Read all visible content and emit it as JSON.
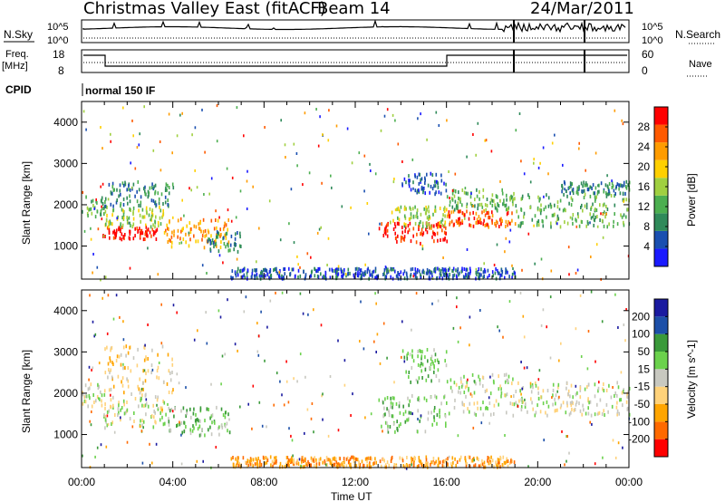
{
  "header": {
    "station": "Christmas Valley East (fitACF)",
    "beam": "Beam 14",
    "date": "24/Mar/2011"
  },
  "params": {
    "nsky_label": "N.Sky",
    "nsearch_label": "N.Search",
    "nsky_ticks": [
      "10^5",
      "10^0"
    ],
    "nsearch_ticks": [
      "10^5",
      "10^0"
    ],
    "freq_label_1": "Freq.",
    "freq_label_2": "[MHz]",
    "freq_ticks": [
      "18",
      "8"
    ],
    "nave_label": "Nave",
    "nave_ticks": [
      "60",
      "0"
    ],
    "cpid_label": "CPID",
    "cpid_text": "normal 150 IF"
  },
  "axes": {
    "ylabel": "Slant Range [km]",
    "yticks": [
      "1000",
      "2000",
      "3000",
      "4000"
    ],
    "xlabel": "Time UT",
    "xticks": [
      "00:00",
      "04:00",
      "08:00",
      "12:00",
      "16:00",
      "20:00",
      "00:00"
    ]
  },
  "colors": {
    "power": [
      "#1a1aff",
      "#1a4fb0",
      "#2f8a5a",
      "#4caf50",
      "#a0d040",
      "#ffd000",
      "#ff9c00",
      "#ff5a00",
      "#ff0000"
    ],
    "velocity": [
      "#ff0000",
      "#ff6a00",
      "#ffa500",
      "#ffd27a",
      "#c8c8c0",
      "#6bd24c",
      "#3a9a3a",
      "#1c4fa8",
      "#1a1aa0"
    ]
  },
  "chart_data": [
    {
      "type": "heatmap",
      "title": "Power",
      "x_unit": "hours UT",
      "xlim": [
        0,
        24
      ],
      "ylim": [
        200,
        4500
      ],
      "colorbar_label": "Power [dB]",
      "colorbar_ticks": [
        "4",
        "8",
        "12",
        "16",
        "20",
        "24",
        "28"
      ],
      "regions": [
        {
          "t0": 0.0,
          "t1": 1.0,
          "r0": 1700,
          "r1": 2300,
          "level": 3
        },
        {
          "t0": 0.9,
          "t1": 3.3,
          "r0": 1200,
          "r1": 1500,
          "level": 8
        },
        {
          "t0": 1.0,
          "t1": 3.6,
          "r0": 1500,
          "r1": 2000,
          "level": 4
        },
        {
          "t0": 1.0,
          "t1": 4.0,
          "r0": 2000,
          "r1": 2600,
          "level": 2
        },
        {
          "t0": 3.6,
          "t1": 6.5,
          "r0": 1000,
          "r1": 1700,
          "level": 6
        },
        {
          "t0": 5.5,
          "t1": 7.0,
          "r0": 900,
          "r1": 1400,
          "level": 2
        },
        {
          "t0": 6.5,
          "t1": 19.0,
          "r0": 250,
          "r1": 500,
          "level": 1
        },
        {
          "t0": 13.0,
          "t1": 16.0,
          "r0": 1100,
          "r1": 1600,
          "level": 8
        },
        {
          "t0": 13.5,
          "t1": 16.0,
          "r0": 1500,
          "r1": 2000,
          "level": 4
        },
        {
          "t0": 14.0,
          "t1": 16.0,
          "r0": 2300,
          "r1": 2800,
          "level": 1
        },
        {
          "t0": 16.0,
          "t1": 19.0,
          "r0": 1500,
          "r1": 1900,
          "level": 7
        },
        {
          "t0": 16.0,
          "t1": 19.0,
          "r0": 1900,
          "r1": 2400,
          "level": 3
        },
        {
          "t0": 19.0,
          "t1": 24.0,
          "r0": 1500,
          "r1": 2300,
          "level": 3
        },
        {
          "t0": 21.0,
          "t1": 24.0,
          "r0": 2300,
          "r1": 2600,
          "level": 2
        }
      ]
    },
    {
      "type": "heatmap",
      "title": "Velocity",
      "x_unit": "hours UT",
      "xlim": [
        0,
        24
      ],
      "ylim": [
        200,
        4500
      ],
      "colorbar_label": "Velocity [m s^-1]",
      "colorbar_ticks": [
        "-200",
        "-100",
        "-50",
        "-15",
        "15",
        "50",
        "100",
        "200"
      ],
      "regions": [
        {
          "t0": 0.0,
          "t1": 1.0,
          "r0": 1700,
          "r1": 2300,
          "level": 4
        },
        {
          "t0": 0.9,
          "t1": 3.6,
          "r0": 1200,
          "r1": 2000,
          "level": 4
        },
        {
          "t0": 1.0,
          "t1": 4.0,
          "r0": 2000,
          "r1": 3200,
          "level": 3
        },
        {
          "t0": 3.6,
          "t1": 6.5,
          "r0": 1000,
          "r1": 1700,
          "level": 5
        },
        {
          "t0": 6.5,
          "t1": 19.0,
          "r0": 250,
          "r1": 500,
          "level": 2
        },
        {
          "t0": 13.0,
          "t1": 16.0,
          "r0": 1100,
          "r1": 2000,
          "level": 5
        },
        {
          "t0": 14.0,
          "t1": 16.0,
          "r0": 2300,
          "r1": 3100,
          "level": 5
        },
        {
          "t0": 16.0,
          "t1": 19.0,
          "r0": 1500,
          "r1": 2500,
          "level": 4
        },
        {
          "t0": 19.0,
          "t1": 24.0,
          "r0": 1500,
          "r1": 2300,
          "level": 4
        }
      ]
    }
  ]
}
